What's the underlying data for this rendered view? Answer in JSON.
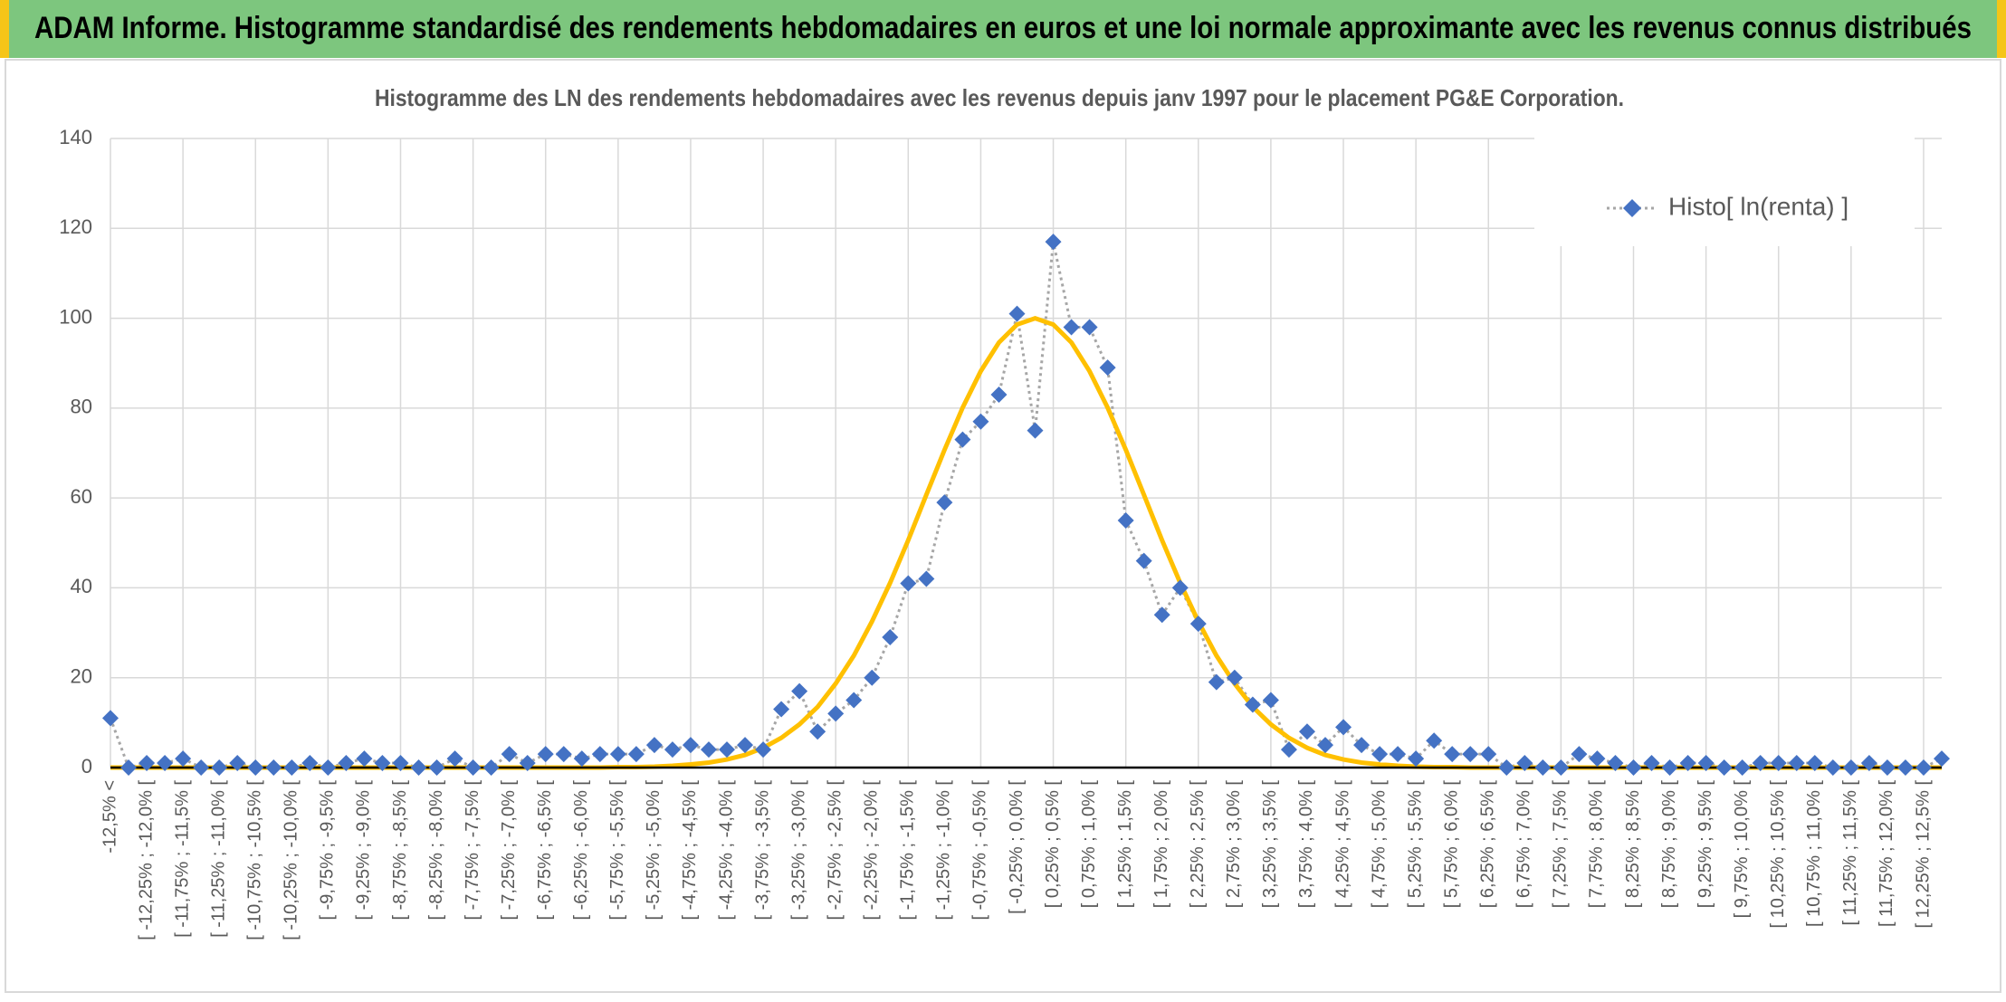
{
  "header": {
    "title": "ADAM Informe. Histogramme standardisé des rendements hebdomadaires en euros et une loi normale approximante avec les revenus connus distribués"
  },
  "chart_data": {
    "type": "line",
    "title": "Histogramme des LN des rendements hebdomadaires avec les revenus depuis janv 1997 pour le placement PG&E Corporation.",
    "categories": [
      "-12,5% <",
      null,
      "[ -12,25% ; -12,0% [",
      null,
      "[ -11,75% ; -11,5% [",
      null,
      "[ -11,25% ; -11,0% [",
      null,
      "[ -10,75% ; -10,5% [",
      null,
      "[ -10,25% ; -10,0% [",
      null,
      "[ -9,75% ; -9,5% [",
      null,
      "[ -9,25% ; -9,0% [",
      null,
      "[ -8,75% ; -8,5% [",
      null,
      "[ -8,25% ; -8,0% [",
      null,
      "[ -7,75% ; -7,5% [",
      null,
      "[ -7,25% ; -7,0% [",
      null,
      "[ -6,75% ; -6,5% [",
      null,
      "[ -6,25% ; -6,0% [",
      null,
      "[ -5,75% ; -5,5% [",
      null,
      "[ -5,25% ; -5,0% [",
      null,
      "[ -4,75% ; -4,5% [",
      null,
      "[ -4,25% ; -4,0% [",
      null,
      "[ -3,75% ; -3,5% [",
      null,
      "[ -3,25% ; -3,0% [",
      null,
      "[ -2,75% ; -2,5% [",
      null,
      "[ -2,25% ; -2,0% [",
      null,
      "[ -1,75% ; -1,5% [",
      null,
      "[ -1,25% ; -1,0% [",
      null,
      "[ -0,75% ; -0,5% [",
      null,
      "[ -0,25% ; 0,0% [",
      null,
      "[ 0,25% ; 0,5% [",
      null,
      "[ 0,75% ; 1,0% [",
      null,
      "[ 1,25% ; 1,5% [",
      null,
      "[ 1,75% ; 2,0% [",
      null,
      "[ 2,25% ; 2,5% [",
      null,
      "[ 2,75% ; 3,0% [",
      null,
      "[ 3,25% ; 3,5% [",
      null,
      "[ 3,75% ; 4,0% [",
      null,
      "[ 4,25% ; 4,5% [",
      null,
      "[ 4,75% ; 5,0% [",
      null,
      "[ 5,25% ; 5,5% [",
      null,
      "[ 5,75% ; 6,0% [",
      null,
      "[ 6,25% ; 6,5% [",
      null,
      "[ 6,75% ; 7,0% [",
      null,
      "[ 7,25% ; 7,5% [",
      null,
      "[ 7,75% ; 8,0% [",
      null,
      "[ 8,25% ; 8,5% [",
      null,
      "[ 8,75% ; 9,0% [",
      null,
      "[ 9,25% ; 9,5% [",
      null,
      "[ 9,75% ; 10,0% [",
      null,
      "[ 10,25% ; 10,5% [",
      null,
      "[ 10,75% ; 11,0% [",
      null,
      "[ 11,25% ; 11,5% [",
      null,
      "[ 11,75% ; 12,0% [",
      null,
      "[ 12,25% ; 12,5% [",
      null
    ],
    "series": [
      {
        "name": "Histo[ ln(renta) ]",
        "color": "#4472c4",
        "values": [
          11,
          0,
          1,
          1,
          2,
          0,
          0,
          1,
          0,
          0,
          0,
          1,
          0,
          1,
          2,
          1,
          1,
          0,
          0,
          2,
          0,
          0,
          3,
          1,
          3,
          3,
          2,
          3,
          3,
          3,
          5,
          4,
          5,
          4,
          4,
          5,
          4,
          13,
          17,
          8,
          12,
          15,
          20,
          29,
          41,
          42,
          59,
          73,
          77,
          83,
          101,
          75,
          117,
          98,
          98,
          89,
          55,
          46,
          34,
          40,
          32,
          19,
          20,
          14,
          15,
          4,
          8,
          5,
          9,
          5,
          3,
          3,
          2,
          6,
          3,
          3,
          3,
          0,
          1,
          0,
          0,
          3,
          2,
          1,
          0,
          1,
          0,
          1,
          1,
          0,
          0,
          1,
          1,
          1,
          1,
          0,
          0,
          1,
          0,
          0,
          0,
          2
        ]
      },
      {
        "color": "#ffc000",
        "values": [
          0,
          0,
          0,
          0,
          0,
          0,
          0,
          0,
          0,
          0,
          0,
          0,
          0,
          0,
          0,
          0,
          0,
          0,
          0,
          0,
          0,
          0,
          0,
          0,
          0,
          0,
          0,
          0,
          0.1,
          0.1,
          0.2,
          0.4,
          0.7,
          1.1,
          1.8,
          2.8,
          4.4,
          6.6,
          9.6,
          13.5,
          18.7,
          24.9,
          32.5,
          41.1,
          50.6,
          60.7,
          70.7,
          80.1,
          88.2,
          94.6,
          98.6,
          100,
          98.6,
          94.6,
          88.2,
          80.1,
          70.7,
          60.7,
          50.6,
          41.1,
          32.5,
          24.9,
          18.7,
          13.5,
          9.6,
          6.6,
          4.4,
          2.8,
          1.8,
          1.1,
          0.7,
          0.4,
          0.2,
          0.1,
          0.1,
          0,
          0,
          0,
          0,
          0,
          0,
          0,
          0,
          0,
          0,
          0,
          0,
          0,
          0,
          0,
          0,
          0,
          0,
          0,
          0,
          0,
          0,
          0,
          0,
          0,
          0,
          0
        ]
      }
    ],
    "ylim": [
      0,
      140
    ],
    "yticks": [
      0,
      20,
      40,
      60,
      80,
      100,
      120,
      140
    ],
    "grid": true,
    "legend": "top-right"
  }
}
